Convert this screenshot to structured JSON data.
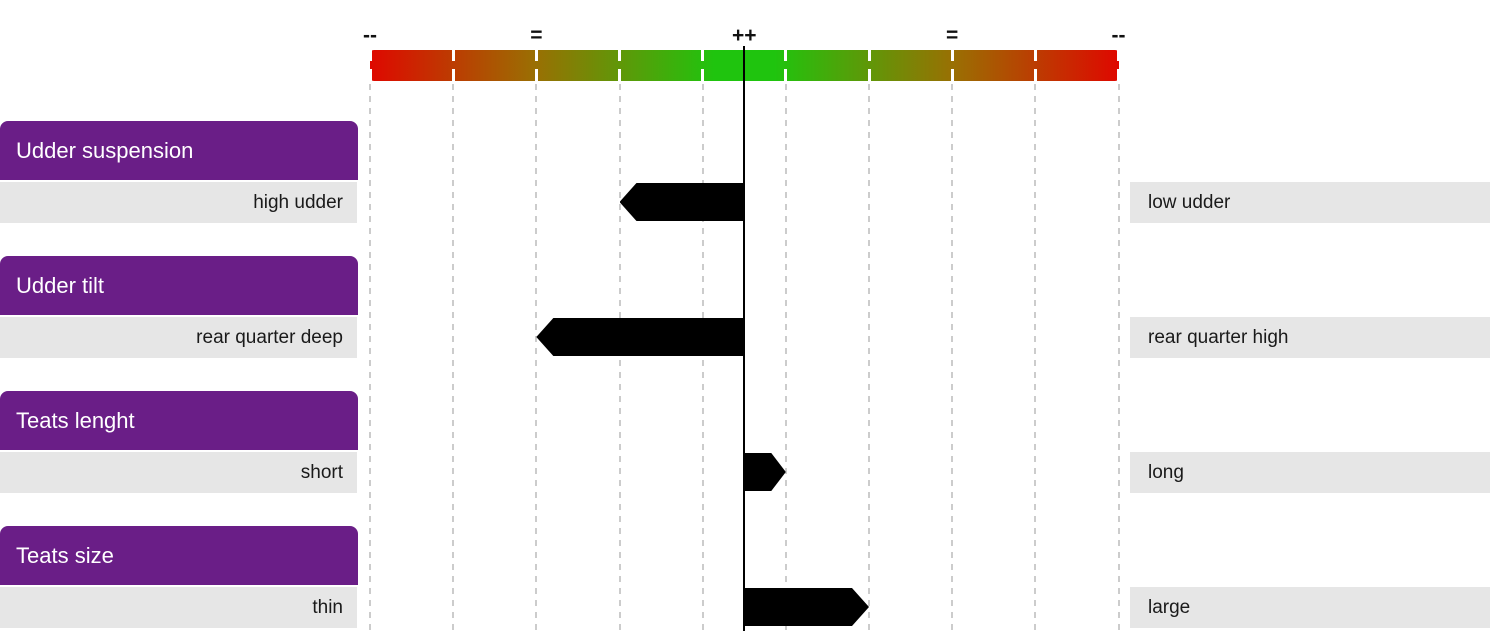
{
  "chart_data": {
    "type": "bar",
    "subtype": "diverging-arrow-trait-scale",
    "title": "",
    "axis": {
      "tick_labels": [
        "--",
        "=",
        "++",
        "=",
        "--"
      ],
      "tick_positions": [
        -9,
        -5,
        0,
        5,
        9
      ],
      "range": [
        -9,
        9
      ],
      "gridline_positions": [
        -9,
        -7,
        -5,
        -3,
        -1,
        1,
        3,
        5,
        7,
        9
      ],
      "center_value": 0,
      "gradient_colors": [
        "#df0800",
        "#1fc40e",
        "#df0800"
      ],
      "legend_position": "none",
      "grid": "dashed-vertical"
    },
    "rows": [
      {
        "trait": "Udder suspension",
        "left_label": "high udder",
        "right_label": "low udder",
        "value": -3
      },
      {
        "trait": "Udder tilt",
        "left_label": "rear quarter deep",
        "right_label": "rear quarter high",
        "value": -5
      },
      {
        "trait": "Teats lenght",
        "left_label": "short",
        "right_label": "long",
        "value": 1
      },
      {
        "trait": "Teats size",
        "left_label": "thin",
        "right_label": "large",
        "value": 3
      }
    ]
  },
  "colors": {
    "header_bg": "#6a1e87",
    "header_text": "#ffffff",
    "row_bg": "#e6e6e6",
    "row_text": "#1a1a1a",
    "arrow": "#000000",
    "gridline": "#cccccc",
    "center_line": "#000000",
    "scale_red": "#df0800",
    "scale_green": "#1fc40e"
  }
}
